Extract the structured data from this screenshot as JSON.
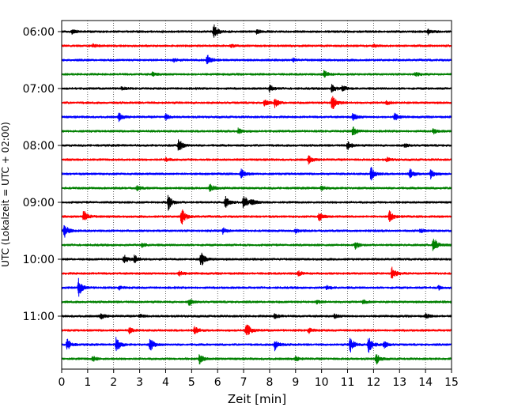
{
  "chart_data": {
    "type": "line",
    "title": "",
    "xlabel": "Zeit  [min]",
    "ylabel": "UTC (Lokalzeit = UTC + 02:00)",
    "xlim": [
      0,
      15
    ],
    "x_ticks": [
      0,
      1,
      2,
      3,
      4,
      5,
      6,
      7,
      8,
      9,
      10,
      11,
      12,
      13,
      14,
      15
    ],
    "x_grid": "dotted",
    "y_ticks": [
      {
        "label": "06:00",
        "trace": 0
      },
      {
        "label": "07:00",
        "trace": 4
      },
      {
        "label": "08:00",
        "trace": 8
      },
      {
        "label": "09:00",
        "trace": 12
      },
      {
        "label": "10:00",
        "trace": 16
      },
      {
        "label": "11:00",
        "trace": 20
      }
    ],
    "color_cycle": [
      "#000000",
      "#ff0000",
      "#0000ff",
      "#008000"
    ],
    "traces": [
      {
        "start": "06:00",
        "events": [
          [
            0.4,
            0.2
          ],
          [
            5.85,
            0.8
          ],
          [
            7.5,
            0.25
          ],
          [
            14.1,
            0.3
          ]
        ]
      },
      {
        "start": "06:15",
        "events": [
          [
            1.2,
            0.15
          ],
          [
            6.5,
            0.2
          ],
          [
            12.0,
            0.15
          ]
        ]
      },
      {
        "start": "06:30",
        "events": [
          [
            4.3,
            0.2
          ],
          [
            5.6,
            0.65
          ],
          [
            8.9,
            0.15
          ]
        ]
      },
      {
        "start": "06:45",
        "events": [
          [
            3.5,
            0.2
          ],
          [
            10.1,
            0.4
          ],
          [
            13.6,
            0.2
          ]
        ]
      },
      {
        "start": "07:00",
        "events": [
          [
            2.3,
            0.15
          ],
          [
            8.0,
            0.35
          ],
          [
            10.4,
            0.45
          ],
          [
            10.8,
            0.3
          ]
        ]
      },
      {
        "start": "07:15",
        "events": [
          [
            7.8,
            0.3
          ],
          [
            8.2,
            0.45
          ],
          [
            10.4,
            1.0
          ],
          [
            12.5,
            0.2
          ]
        ]
      },
      {
        "start": "07:30",
        "events": [
          [
            2.2,
            0.4
          ],
          [
            4.0,
            0.3
          ],
          [
            11.2,
            0.4
          ],
          [
            12.8,
            0.4
          ]
        ]
      },
      {
        "start": "07:45",
        "events": [
          [
            6.8,
            0.3
          ],
          [
            11.2,
            0.5
          ],
          [
            14.3,
            0.25
          ]
        ]
      },
      {
        "start": "08:00",
        "events": [
          [
            4.5,
            0.7
          ],
          [
            11.0,
            0.5
          ],
          [
            13.2,
            0.2
          ]
        ]
      },
      {
        "start": "08:15",
        "events": [
          [
            4.0,
            0.2
          ],
          [
            9.5,
            0.4
          ],
          [
            12.5,
            0.2
          ]
        ]
      },
      {
        "start": "08:30",
        "events": [
          [
            6.9,
            0.5
          ],
          [
            11.9,
            0.75
          ],
          [
            13.4,
            0.5
          ],
          [
            14.2,
            0.5
          ]
        ]
      },
      {
        "start": "08:45",
        "events": [
          [
            2.9,
            0.25
          ],
          [
            5.7,
            0.5
          ],
          [
            10.0,
            0.25
          ]
        ]
      },
      {
        "start": "09:00",
        "events": [
          [
            4.1,
            0.8
          ],
          [
            6.3,
            0.6
          ],
          [
            7.0,
            0.85
          ],
          [
            7.3,
            0.3
          ]
        ]
      },
      {
        "start": "09:15",
        "events": [
          [
            0.85,
            0.7
          ],
          [
            4.6,
            1.0
          ],
          [
            9.9,
            0.5
          ],
          [
            12.6,
            0.65
          ]
        ]
      },
      {
        "start": "09:30",
        "events": [
          [
            0.1,
            0.8
          ],
          [
            6.2,
            0.3
          ],
          [
            9.0,
            0.2
          ],
          [
            13.8,
            0.2
          ]
        ]
      },
      {
        "start": "09:45",
        "events": [
          [
            3.1,
            0.2
          ],
          [
            11.3,
            0.35
          ],
          [
            14.3,
            0.9
          ]
        ]
      },
      {
        "start": "10:00",
        "events": [
          [
            2.4,
            0.5
          ],
          [
            2.8,
            0.4
          ],
          [
            5.35,
            0.9
          ]
        ]
      },
      {
        "start": "10:15",
        "events": [
          [
            4.5,
            0.3
          ],
          [
            9.1,
            0.25
          ],
          [
            12.7,
            0.65
          ]
        ]
      },
      {
        "start": "10:30",
        "events": [
          [
            0.65,
            0.9
          ],
          [
            2.2,
            0.2
          ],
          [
            10.2,
            0.2
          ],
          [
            14.5,
            0.2
          ]
        ]
      },
      {
        "start": "10:45",
        "events": [
          [
            4.9,
            0.35
          ],
          [
            9.8,
            0.2
          ],
          [
            11.6,
            0.2
          ]
        ]
      },
      {
        "start": "11:00",
        "events": [
          [
            1.5,
            0.3
          ],
          [
            3.0,
            0.2
          ],
          [
            8.2,
            0.3
          ],
          [
            10.5,
            0.2
          ],
          [
            14.0,
            0.25
          ]
        ]
      },
      {
        "start": "11:15",
        "events": [
          [
            2.6,
            0.3
          ],
          [
            5.1,
            0.4
          ],
          [
            7.1,
            0.95
          ],
          [
            9.5,
            0.3
          ]
        ]
      },
      {
        "start": "11:30",
        "events": [
          [
            0.2,
            0.65
          ],
          [
            2.1,
            0.8
          ],
          [
            3.4,
            0.7
          ],
          [
            8.2,
            0.6
          ],
          [
            11.1,
            0.85
          ],
          [
            11.8,
            1.0
          ],
          [
            12.4,
            0.4
          ]
        ]
      },
      {
        "start": "11:45",
        "events": [
          [
            1.2,
            0.3
          ],
          [
            5.3,
            0.55
          ],
          [
            9.0,
            0.2
          ],
          [
            12.1,
            0.6
          ]
        ]
      }
    ]
  }
}
